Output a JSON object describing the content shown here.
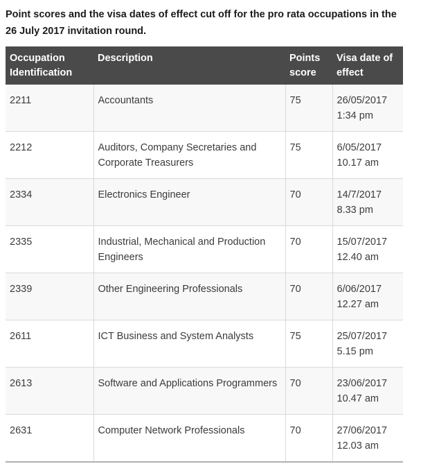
{
  "title": {
    "line1": "Point scores and the visa dates of effect cut off for the pro rata occupations in the",
    "line2": "26 July 2017 invitation round."
  },
  "table": {
    "columns": [
      "Occupation Identification",
      "Description",
      "Points score",
      "Visa date of effect"
    ],
    "rows": [
      {
        "id": "2211",
        "description": "Accountants",
        "points": "75",
        "date": "26/05/2017",
        "time": "1:34 pm"
      },
      {
        "id": "2212",
        "description": "Auditors, Company Secretaries and Corporate Treasurers",
        "points": "75",
        "date": "6/05/2017",
        "time": "10.17 am"
      },
      {
        "id": "2334",
        "description": "Electronics Engineer",
        "points": "70",
        "date": "14/7/2017",
        "time": "8.33 pm"
      },
      {
        "id": "2335",
        "description": "Industrial, Mechanical and Production Engineers",
        "points": "70",
        "date": "15/07/2017",
        "time": "12.40 am"
      },
      {
        "id": "2339",
        "description": "Other Engineering Professionals",
        "points": "70",
        "date": "6/06/2017",
        "time": "12.27 am"
      },
      {
        "id": "2611",
        "description": "ICT Business and System Analysts",
        "points": "75",
        "date": "25/07/2017",
        "time": "5.15 pm"
      },
      {
        "id": "2613",
        "description": "Software and Applications Programmers",
        "points": "70",
        "date": "23/06/2017",
        "time": "10.47 am"
      },
      {
        "id": "2631",
        "description": "Computer Network Professionals",
        "points": "70",
        "date": "27/06/2017",
        "time": "12.03 am"
      }
    ]
  },
  "colors": {
    "header_bg": "#4a4a4a",
    "header_text": "#ffffff",
    "row_alt_bg": "#f8f8f8",
    "row_border": "#d9d9d9",
    "table_bottom_border": "#b0b0b0",
    "body_text": "#3b3b3b",
    "title_text": "#1b1b1b"
  }
}
